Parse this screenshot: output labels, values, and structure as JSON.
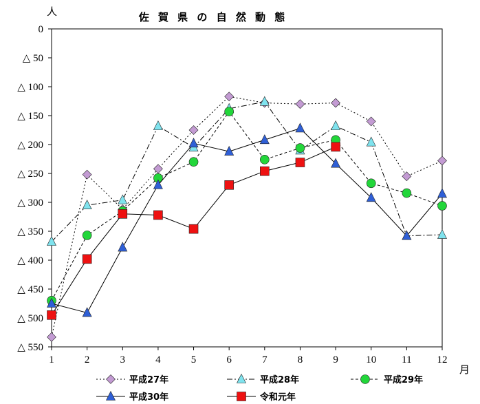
{
  "chart_data": {
    "type": "line",
    "title": "佐 賀 県 の 自 然 動 態",
    "y_unit_label": "人",
    "x_unit_label": "月",
    "x": [
      1,
      2,
      3,
      4,
      5,
      6,
      7,
      8,
      9,
      10,
      11,
      12
    ],
    "ylim": [
      0,
      -550
    ],
    "y_ticks": [
      0,
      -50,
      -100,
      -150,
      -200,
      -250,
      -300,
      -350,
      -400,
      -450,
      -500,
      -550
    ],
    "y_tick_labels": [
      "0",
      "△ 50",
      "△ 100",
      "△ 150",
      "△ 200",
      "△ 250",
      "△ 300",
      "△ 350",
      "△ 400",
      "△ 450",
      "△ 500",
      "△ 550"
    ],
    "grid": false,
    "legend_position": "bottom",
    "series": [
      {
        "name": "平成27年",
        "color": "#c39bd3",
        "marker": "diamond",
        "dash": "dot",
        "values": [
          -533,
          -252,
          -312,
          -242,
          -175,
          -117,
          -128,
          -130,
          -128,
          -160,
          -255,
          -228
        ]
      },
      {
        "name": "平成28年",
        "color": "#7fe3ee",
        "marker": "triangle",
        "dash": "dashdot",
        "values": [
          -368,
          -305,
          -296,
          -168,
          -205,
          -138,
          -126,
          -210,
          -168,
          -196,
          -358,
          -356
        ]
      },
      {
        "name": "平成29年",
        "color": "#22d63a",
        "marker": "circle",
        "dash": "dash",
        "values": [
          -470,
          -357,
          -315,
          -258,
          -230,
          -143,
          -226,
          -206,
          -192,
          -267,
          -284,
          -306
        ]
      },
      {
        "name": "平成30年",
        "color": "#2f5fd6",
        "marker": "triangle",
        "dash": "solid",
        "values": [
          -475,
          -491,
          -378,
          -270,
          -198,
          -212,
          -192,
          -172,
          -233,
          -292,
          -358,
          -285
        ]
      },
      {
        "name": "令和元年",
        "color": "#ee1111",
        "marker": "square",
        "dash": "solid",
        "values": [
          -495,
          -398,
          -320,
          -322,
          -346,
          -270,
          -246,
          -231,
          -204,
          null,
          null,
          null
        ]
      }
    ]
  }
}
